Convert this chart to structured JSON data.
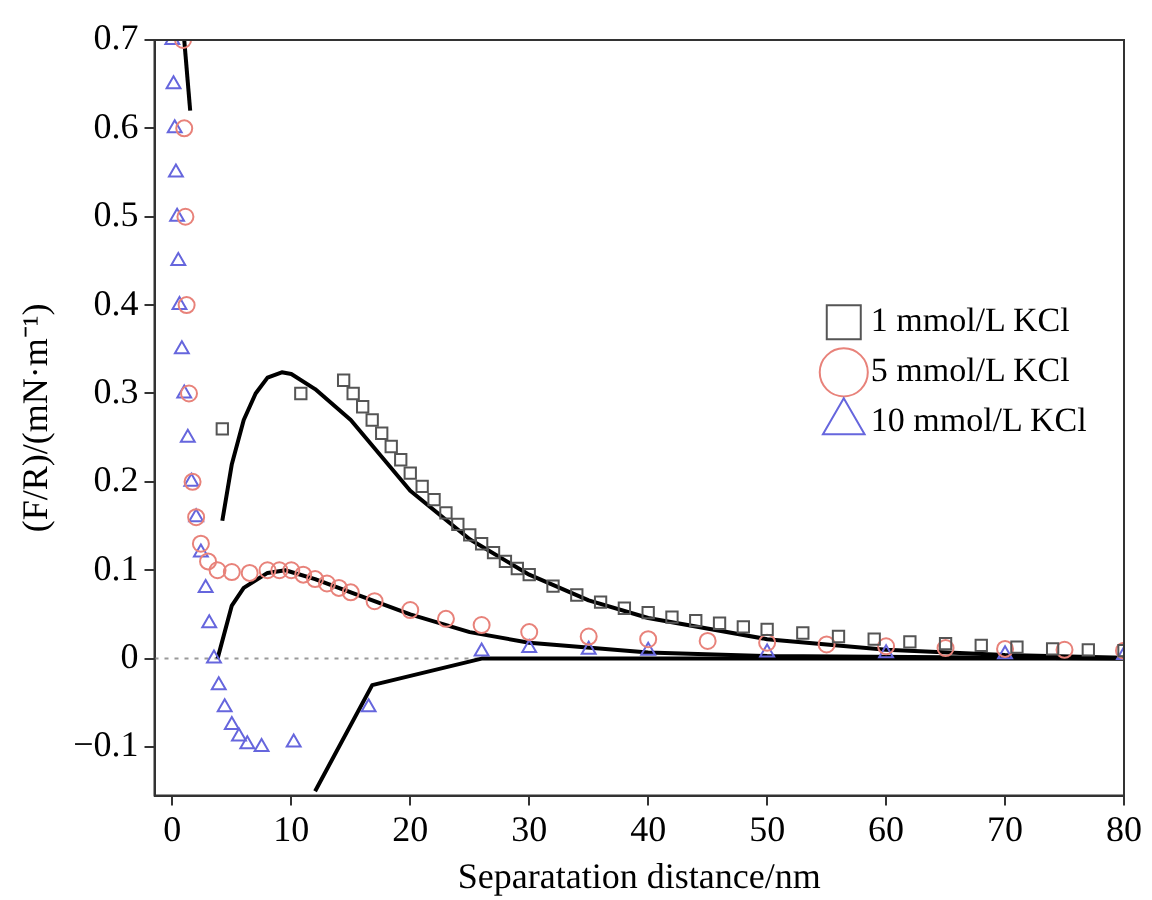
{
  "chart_data": {
    "type": "scatter",
    "xlabel": "Separatation distance/nm",
    "ylabel": "(F/R)/(mN·m⁻¹)",
    "xlim": [
      -1.5,
      80
    ],
    "xticks": [
      0,
      10,
      20,
      30,
      40,
      50,
      60,
      70,
      80
    ],
    "ylim": [
      -0.155,
      0.7
    ],
    "yticks": [
      -0.1,
      0,
      0.1,
      0.2,
      0.3,
      0.4,
      0.5,
      0.6,
      0.7
    ],
    "grid": false,
    "legend": "top right",
    "ref_lines": [
      {
        "axis": "y",
        "value": 0,
        "color": "#999999",
        "line_style": "dotted"
      }
    ],
    "series": [
      {
        "name": "1 mmol/L KCl",
        "color": "#555555",
        "marker": "square",
        "x": [
          4.2,
          10.8,
          14.4,
          15.2,
          16,
          16.8,
          17.6,
          18.4,
          19.2,
          20,
          21,
          22,
          23,
          24,
          25,
          26,
          27,
          28,
          29,
          30,
          32,
          34,
          36,
          38,
          40,
          42,
          44,
          46,
          48,
          50,
          53,
          56,
          59,
          62,
          65,
          68,
          71,
          74,
          77,
          80
        ],
        "values": [
          0.26,
          0.3,
          0.315,
          0.3,
          0.285,
          0.27,
          0.255,
          0.24,
          0.225,
          0.21,
          0.195,
          0.18,
          0.165,
          0.152,
          0.14,
          0.13,
          0.12,
          0.11,
          0.102,
          0.095,
          0.082,
          0.072,
          0.064,
          0.057,
          0.052,
          0.047,
          0.043,
          0.04,
          0.036,
          0.033,
          0.029,
          0.025,
          0.022,
          0.019,
          0.017,
          0.015,
          0.013,
          0.011,
          0.01,
          0.009
        ]
      },
      {
        "name": "5 mmol/L KCl",
        "color": "#e8827a",
        "marker": "circle",
        "x": [
          0.9,
          1,
          1.1,
          1.2,
          1.4,
          1.7,
          2,
          2.4,
          3,
          3.8,
          5,
          6.5,
          8,
          9,
          10,
          11,
          12,
          13,
          14,
          15,
          17,
          20,
          23,
          26,
          30,
          35,
          40,
          45,
          50,
          55,
          60,
          65,
          70,
          75,
          80
        ],
        "values": [
          0.7,
          0.6,
          0.5,
          0.4,
          0.3,
          0.2,
          0.16,
          0.13,
          0.11,
          0.1,
          0.098,
          0.097,
          0.1,
          0.1,
          0.1,
          0.095,
          0.09,
          0.085,
          0.08,
          0.075,
          0.065,
          0.055,
          0.045,
          0.038,
          0.03,
          0.025,
          0.022,
          0.02,
          0.018,
          0.016,
          0.014,
          0.012,
          0.011,
          0.01,
          0.009
        ]
      },
      {
        "name": "10 mmol/L KCl",
        "color": "#6666dd",
        "marker": "triangle",
        "x": [
          0,
          0.1,
          0.2,
          0.3,
          0.4,
          0.5,
          0.6,
          0.8,
          1,
          1.3,
          1.6,
          2,
          2.4,
          2.8,
          3.1,
          3.5,
          3.9,
          4.4,
          5,
          5.6,
          6.3,
          7.5,
          10.2,
          16.5,
          26,
          30,
          35,
          40,
          50,
          60,
          70,
          80
        ],
        "values": [
          0.7,
          0.65,
          0.6,
          0.55,
          0.5,
          0.45,
          0.4,
          0.35,
          0.3,
          0.25,
          0.2,
          0.16,
          0.12,
          0.08,
          0.04,
          0,
          -0.03,
          -0.055,
          -0.075,
          -0.088,
          -0.097,
          -0.1,
          -0.095,
          -0.055,
          0.008,
          0.012,
          0.01,
          0.009,
          0.007,
          0.006,
          0.005,
          0.004
        ]
      },
      {
        "type": "line",
        "color": "#000000",
        "marker": "none",
        "x": [
          1.0,
          1.5
        ],
        "values": [
          0.7,
          0.62
        ]
      },
      {
        "type": "line",
        "color": "#000000",
        "marker": "none",
        "x": [
          4.2,
          5,
          6,
          7,
          8,
          9.2,
          10,
          12,
          15,
          20,
          25,
          30,
          35,
          40,
          50,
          60,
          70,
          80
        ],
        "values": [
          0.156,
          0.22,
          0.27,
          0.3,
          0.318,
          0.324,
          0.322,
          0.305,
          0.27,
          0.19,
          0.135,
          0.095,
          0.066,
          0.046,
          0.022,
          0.01,
          0.004,
          0.001
        ]
      },
      {
        "type": "line",
        "color": "#000000",
        "marker": "none",
        "x": [
          3.8,
          5,
          6,
          8,
          9.5,
          12,
          15,
          20,
          25,
          30,
          40,
          50,
          80
        ],
        "values": [
          0,
          0.06,
          0.08,
          0.097,
          0.1,
          0.09,
          0.075,
          0.05,
          0.03,
          0.018,
          0.007,
          0.003,
          0
        ]
      },
      {
        "type": "line",
        "color": "#000000",
        "marker": "none",
        "x": [
          12,
          16.8,
          26,
          80
        ],
        "values": [
          -0.15,
          -0.03,
          0,
          0
        ]
      }
    ]
  }
}
